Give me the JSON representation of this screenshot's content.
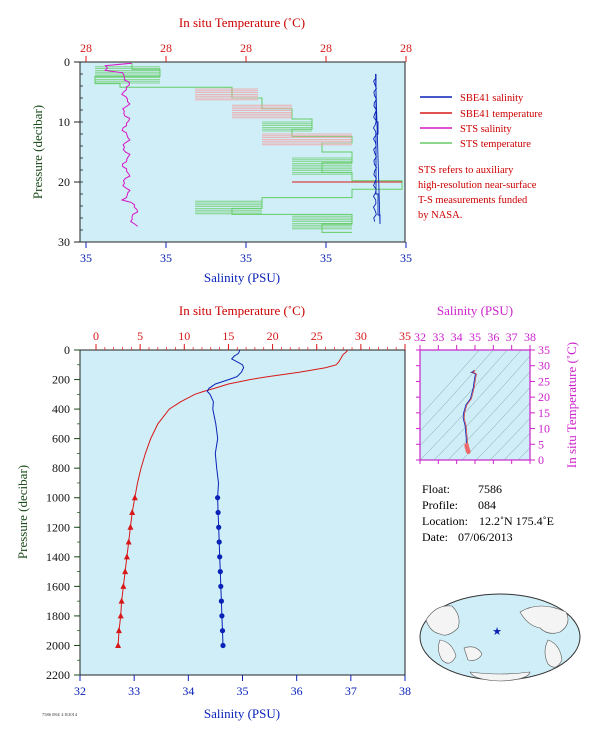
{
  "colors": {
    "plot_bg": "#cfeef7",
    "temperature": "#d81818",
    "salinity": "#0a22b8",
    "sts_salinity": "#d816c8",
    "sts_temperature": "#66cc66",
    "sts_temperature_light": "#f59a9a",
    "pressure_label": "#1a4a1a",
    "ts_axis": "#cc22cc",
    "legend_text": "#cc0000"
  },
  "charts": [
    {
      "type": "line",
      "top_axis": {
        "label": "In situ Temperature (˚C)",
        "ticks": [
          "28",
          "28",
          "28",
          "28",
          "28"
        ]
      },
      "bottom_axis": {
        "label": "Salinity (PSU)",
        "ticks": [
          "35",
          "35",
          "35",
          "35",
          "35"
        ]
      },
      "left_axis": {
        "label": "Pressure (decibar)",
        "ticks": [
          "0",
          "10",
          "20",
          "30"
        ],
        "ylim": [
          0,
          30
        ],
        "inverted": true
      },
      "legend": {
        "position": "right",
        "entries": [
          "SBE41 salinity",
          "SBE41 temperature",
          "STS salinity",
          "STS temperature"
        ],
        "note": [
          "STS refers to auxiliary",
          "high-resolution near-surface",
          "T-S measurements funded",
          "by NASA."
        ]
      }
    },
    {
      "type": "line",
      "top_axis": {
        "label": "In situ Temperature (˚C)",
        "ticks": [
          "0",
          "5",
          "10",
          "15",
          "20",
          "25",
          "30",
          "35"
        ],
        "xlim": [
          0,
          35
        ]
      },
      "bottom_axis": {
        "label": "Salinity (PSU)",
        "ticks": [
          "32",
          "33",
          "34",
          "35",
          "36",
          "37",
          "38"
        ],
        "xlim": [
          32,
          38
        ]
      },
      "left_axis": {
        "label": "Pressure (decibar)",
        "ticks": [
          "0",
          "200",
          "400",
          "600",
          "800",
          "1000",
          "1200",
          "1400",
          "1600",
          "1800",
          "2000",
          "2200"
        ],
        "ylim": [
          0,
          2200
        ],
        "inverted": true
      },
      "series": [
        {
          "name": "temperature",
          "unit": "˚C",
          "p": [
            0,
            10,
            20,
            30,
            40,
            60,
            80,
            100,
            120,
            150,
            180,
            200,
            230,
            260,
            280,
            300,
            350,
            400,
            500,
            600,
            700,
            800,
            900,
            1000,
            1100,
            1200,
            1300,
            1400,
            1500,
            1600,
            1700,
            1800,
            1900,
            2000
          ],
          "v": [
            28.5,
            28.4,
            28.2,
            28.0,
            27.9,
            27.7,
            27.5,
            27.2,
            26.0,
            23.0,
            19.5,
            17.5,
            15.0,
            13.4,
            12.2,
            11.2,
            9.6,
            8.3,
            7.0,
            6.2,
            5.6,
            5.1,
            4.7,
            4.4,
            4.1,
            3.9,
            3.7,
            3.5,
            3.3,
            3.1,
            2.9,
            2.8,
            2.6,
            2.5
          ]
        },
        {
          "name": "salinity",
          "unit": "PSU",
          "p": [
            0,
            20,
            30,
            40,
            60,
            80,
            100,
            120,
            150,
            180,
            200,
            230,
            260,
            280,
            300,
            350,
            400,
            500,
            600,
            700,
            800,
            900,
            1000,
            1100,
            1200,
            1300,
            1400,
            1500,
            1600,
            1700,
            1800,
            1900,
            2000
          ],
          "v": [
            34.95,
            34.93,
            34.9,
            34.85,
            34.8,
            34.9,
            35.0,
            35.02,
            34.98,
            34.9,
            34.75,
            34.5,
            34.38,
            34.35,
            34.4,
            34.45,
            34.48,
            34.5,
            34.52,
            34.52,
            34.53,
            34.53,
            34.54,
            34.55,
            34.56,
            34.57,
            34.58,
            34.59,
            34.6,
            34.61,
            34.62,
            34.63,
            34.64
          ]
        }
      ]
    },
    {
      "type": "scatter",
      "name": "T-S diagram",
      "top_axis": {
        "label": "Salinity (PSU)",
        "ticks": [
          "32",
          "33",
          "34",
          "35",
          "36",
          "37",
          "38"
        ],
        "xlim": [
          32,
          38
        ]
      },
      "right_axis": {
        "label": "In situ Temperature (˚C)",
        "ticks": [
          "0",
          "5",
          "10",
          "15",
          "20",
          "25",
          "30",
          "35"
        ],
        "ylim": [
          0,
          35
        ]
      }
    }
  ],
  "float_info": [
    {
      "key": "Float:",
      "value": "7586"
    },
    {
      "key": "Profile:",
      "value": "084"
    },
    {
      "key": "Location:",
      "value": "12.2˚N 175.4˚E"
    },
    {
      "key": "Date:",
      "value": "07/06/2013"
    }
  ],
  "footer": "7586 084/ 4 8/2014"
}
